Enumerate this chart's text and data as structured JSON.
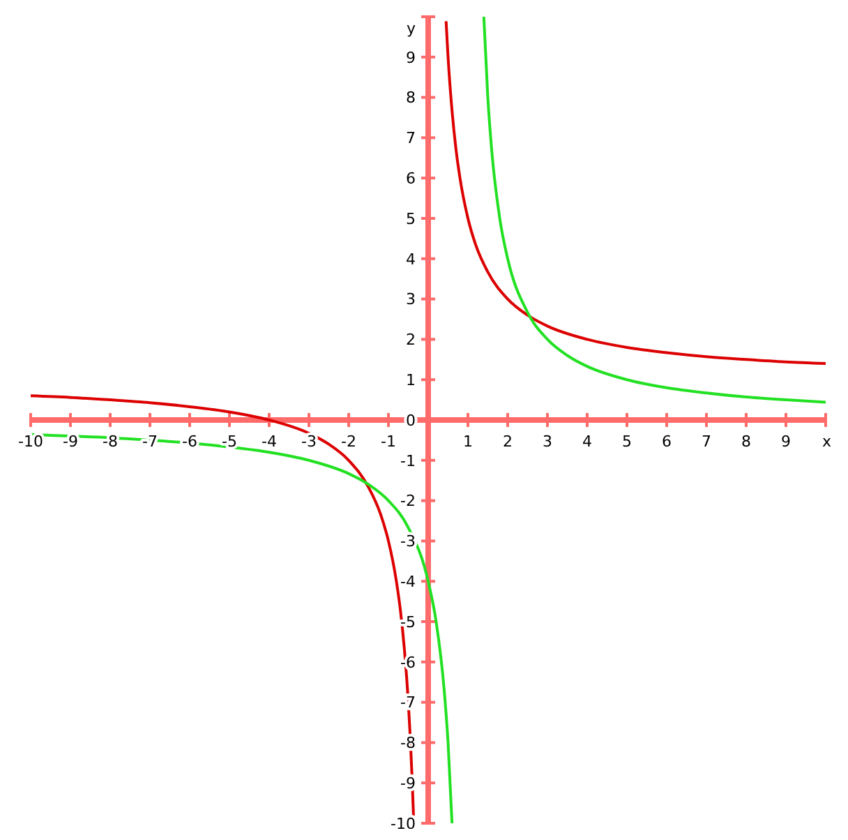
{
  "chart_data": {
    "type": "line",
    "xlabel": "x",
    "ylabel": "y",
    "xlim": [
      -10,
      10
    ],
    "ylim": [
      -10,
      10
    ],
    "xticks": [
      -10,
      -9,
      -8,
      -7,
      -6,
      -5,
      -4,
      -3,
      -2,
      -1,
      {
        "value": 0,
        "label": null
      },
      1,
      2,
      3,
      4,
      5,
      6,
      7,
      8,
      9,
      {
        "value": 10,
        "label": null
      }
    ],
    "yticks": [
      -10,
      -9,
      -8,
      -7,
      -6,
      -5,
      -4,
      -3,
      -2,
      -1,
      0,
      1,
      2,
      3,
      4,
      5,
      6,
      7,
      8,
      9,
      {
        "value": 10,
        "label": null
      }
    ],
    "grid": false,
    "marker": "none",
    "line_style": "solid",
    "series": [
      {
        "color": "#dd0000",
        "x": [
          -10,
          -9,
          -8,
          -7,
          -6,
          -5,
          -4,
          -3,
          -2.5,
          -2,
          -1.5,
          -1.2,
          -1,
          -0.8,
          -0.7,
          -0.6,
          -0.5,
          -0.45,
          -0.4,
          -0.37,
          0,
          0.45,
          0.5,
          0.6,
          0.7,
          0.8,
          1,
          1.2,
          1.5,
          2,
          2.5,
          3,
          4,
          5,
          6,
          7,
          8,
          9,
          10
        ],
        "values": [
          0.6,
          0.56,
          0.5,
          0.43,
          0.33,
          0.2,
          0,
          -0.33,
          -0.6,
          -1,
          -1.67,
          -2.33,
          -3,
          -4,
          -4.71,
          -5.67,
          -7,
          -7.89,
          -9,
          -9.81,
          null,
          9.89,
          9,
          7.67,
          6.71,
          6,
          5,
          4.33,
          3.67,
          3,
          2.6,
          2.33,
          2,
          1.8,
          1.67,
          1.57,
          1.5,
          1.44,
          1.4
        ]
      },
      {
        "color": "#22e022",
        "x": [
          -10,
          -9,
          -8,
          -7,
          -6,
          -5,
          -4,
          -3,
          -2,
          -1.5,
          -1,
          -0.5,
          0,
          0.2,
          0.4,
          0.5,
          0.6,
          1,
          1.4,
          1.5,
          1.6,
          1.8,
          2,
          2.5,
          3,
          3.5,
          4,
          5,
          6,
          7,
          8,
          9,
          10
        ],
        "values": [
          -0.36,
          -0.4,
          -0.44,
          -0.5,
          -0.57,
          -0.67,
          -0.8,
          -1,
          -1.33,
          -1.6,
          -2,
          -2.67,
          -4,
          -5,
          -6.67,
          -8,
          -10,
          null,
          10,
          8,
          6.67,
          5,
          4,
          2.67,
          2,
          1.6,
          1.33,
          1,
          0.8,
          0.67,
          0.57,
          0.5,
          0.44
        ]
      }
    ]
  }
}
